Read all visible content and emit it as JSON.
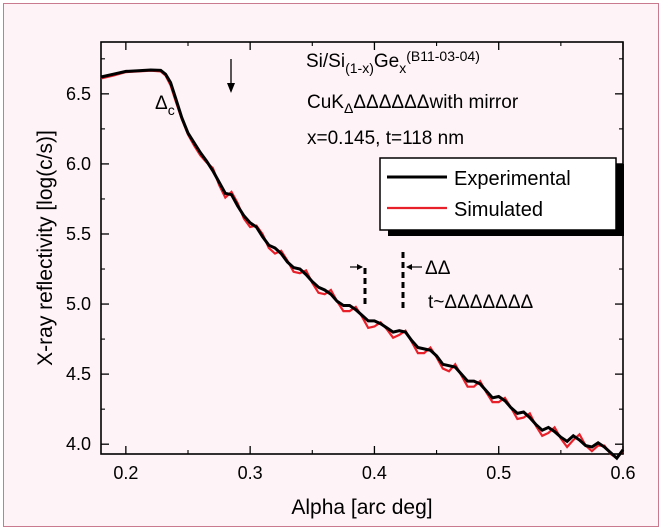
{
  "colors": {
    "frame_background": "#fef3f6",
    "frame_border": "#c97a8f",
    "experimental": "#000000",
    "simulated": "#e8202a"
  },
  "chart_data": {
    "type": "line",
    "xlabel": "Alpha [arc deg]",
    "ylabel": "X-ray reflectivity [log(c/s)]",
    "xlim": [
      0.18,
      0.6
    ],
    "ylim": [
      3.93,
      6.87
    ],
    "x_ticks": [
      "0.2",
      "0.3",
      "0.4",
      "0.5",
      "0.6"
    ],
    "y_ticks": [
      "4.0",
      "4.5",
      "5.0",
      "5.5",
      "6.0",
      "6.5"
    ],
    "grid": false,
    "legend": {
      "position": "right",
      "entries": [
        "Experimental",
        "Simulated"
      ]
    },
    "annotations": {
      "sample_prefix": "Si/Si",
      "sample_sub": "(1-x)",
      "sample_mid": "Ge",
      "sample_subx": "x",
      "sample_id": "(B11-03-04)",
      "radiation_prefix": "CuK",
      "radiation_sub": "Δ",
      "radiation_rest": "ΔΔΔΔΔΔwith mirror",
      "params": "x=0.145, t=118 nm",
      "critical_delta": "Δ",
      "critical_sub": "c",
      "period_label": "ΔΔ",
      "thickness_label": "t~ΔΔΔΔΔΔΔ"
    },
    "series": [
      {
        "name": "Experimental",
        "x": [
          0.18,
          0.19,
          0.2,
          0.21,
          0.22,
          0.228,
          0.232,
          0.236,
          0.24,
          0.245,
          0.25,
          0.255,
          0.26,
          0.265,
          0.27,
          0.275,
          0.28,
          0.285,
          0.29,
          0.295,
          0.3,
          0.305,
          0.31,
          0.315,
          0.32,
          0.325,
          0.33,
          0.335,
          0.34,
          0.345,
          0.35,
          0.355,
          0.36,
          0.365,
          0.37,
          0.375,
          0.38,
          0.385,
          0.39,
          0.395,
          0.4,
          0.405,
          0.41,
          0.415,
          0.42,
          0.425,
          0.43,
          0.435,
          0.44,
          0.445,
          0.45,
          0.455,
          0.46,
          0.465,
          0.47,
          0.475,
          0.48,
          0.485,
          0.49,
          0.495,
          0.5,
          0.505,
          0.51,
          0.515,
          0.52,
          0.525,
          0.53,
          0.535,
          0.54,
          0.545,
          0.55,
          0.555,
          0.56,
          0.565,
          0.57,
          0.575,
          0.58,
          0.585,
          0.59,
          0.595,
          0.6
        ],
        "y": [
          6.62,
          6.64,
          6.66,
          6.665,
          6.67,
          6.668,
          6.64,
          6.58,
          6.47,
          6.33,
          6.22,
          6.15,
          6.08,
          6.02,
          5.95,
          5.87,
          5.79,
          5.78,
          5.7,
          5.63,
          5.58,
          5.55,
          5.48,
          5.42,
          5.4,
          5.36,
          5.3,
          5.26,
          5.25,
          5.21,
          5.16,
          5.12,
          5.1,
          5.07,
          5.02,
          4.99,
          4.99,
          4.96,
          4.92,
          4.88,
          4.88,
          4.86,
          4.83,
          4.8,
          4.81,
          4.8,
          4.74,
          4.69,
          4.68,
          4.67,
          4.63,
          4.57,
          4.56,
          4.55,
          4.5,
          4.45,
          4.45,
          4.43,
          4.38,
          4.33,
          4.34,
          4.31,
          4.26,
          4.22,
          4.23,
          4.19,
          4.14,
          4.1,
          4.12,
          4.09,
          4.05,
          4.02,
          4.06,
          4.03,
          3.99,
          3.98,
          4.01,
          3.98,
          3.94,
          3.9,
          3.96
        ]
      },
      {
        "name": "Simulated",
        "x": [
          0.18,
          0.19,
          0.2,
          0.21,
          0.22,
          0.228,
          0.232,
          0.236,
          0.24,
          0.245,
          0.25,
          0.255,
          0.26,
          0.265,
          0.27,
          0.275,
          0.28,
          0.285,
          0.29,
          0.295,
          0.3,
          0.305,
          0.31,
          0.315,
          0.32,
          0.325,
          0.33,
          0.335,
          0.34,
          0.345,
          0.35,
          0.355,
          0.36,
          0.365,
          0.37,
          0.375,
          0.38,
          0.385,
          0.39,
          0.395,
          0.4,
          0.405,
          0.41,
          0.415,
          0.42,
          0.425,
          0.43,
          0.435,
          0.44,
          0.445,
          0.45,
          0.455,
          0.46,
          0.465,
          0.47,
          0.475,
          0.48,
          0.485,
          0.49,
          0.495,
          0.5,
          0.505,
          0.51,
          0.515,
          0.52,
          0.525,
          0.53,
          0.535,
          0.54,
          0.545,
          0.55,
          0.555,
          0.56,
          0.565,
          0.57,
          0.575,
          0.58,
          0.585,
          0.59,
          0.595,
          0.6
        ],
        "y": [
          6.61,
          6.63,
          6.655,
          6.66,
          6.665,
          6.66,
          6.63,
          6.56,
          6.45,
          6.32,
          6.21,
          6.13,
          6.06,
          6.01,
          5.97,
          5.85,
          5.76,
          5.8,
          5.72,
          5.61,
          5.55,
          5.56,
          5.5,
          5.4,
          5.36,
          5.38,
          5.31,
          5.23,
          5.22,
          5.24,
          5.15,
          5.08,
          5.07,
          5.1,
          5.02,
          4.95,
          4.95,
          4.98,
          4.91,
          4.83,
          4.84,
          4.87,
          4.82,
          4.76,
          4.78,
          4.81,
          4.73,
          4.65,
          4.65,
          4.69,
          4.62,
          4.54,
          4.52,
          4.57,
          4.49,
          4.41,
          4.41,
          4.45,
          4.37,
          4.3,
          4.3,
          4.33,
          4.26,
          4.18,
          4.19,
          4.22,
          4.13,
          4.06,
          4.08,
          4.12,
          4.04,
          3.98,
          4.03,
          4.07,
          3.99,
          3.95,
          3.99,
          3.99,
          3.93,
          3.9,
          3.95
        ]
      }
    ]
  }
}
